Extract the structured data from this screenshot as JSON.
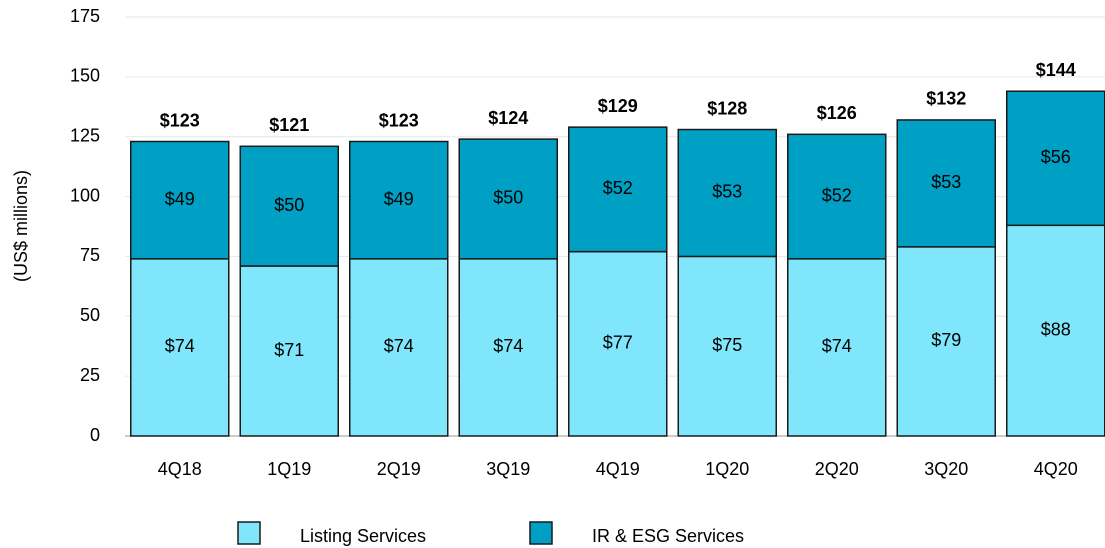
{
  "chart_data": {
    "type": "stacked_bar",
    "y_label": "(US$ millions)",
    "categories": [
      "4Q18",
      "1Q19",
      "2Q19",
      "3Q19",
      "4Q19",
      "1Q20",
      "2Q20",
      "3Q20",
      "4Q20"
    ],
    "series": [
      {
        "name": "Listing Services",
        "color": "#7fe6fb",
        "values": [
          74,
          71,
          74,
          74,
          77,
          75,
          74,
          79,
          88
        ],
        "value_labels": [
          "$74",
          "$71",
          "$74",
          "$74",
          "$77",
          "$75",
          "$74",
          "$79",
          "$88"
        ]
      },
      {
        "name": "IR & ESG Services",
        "color": "#009fc4",
        "values": [
          49,
          50,
          49,
          50,
          52,
          53,
          52,
          53,
          56
        ],
        "value_labels": [
          "$49",
          "$50",
          "$49",
          "$50",
          "$52",
          "$53",
          "$52",
          "$53",
          "$56"
        ]
      }
    ],
    "totals": [
      123,
      121,
      123,
      124,
      129,
      128,
      126,
      132,
      144
    ],
    "total_labels": [
      "$123",
      "$121",
      "$123",
      "$124",
      "$129",
      "$128",
      "$126",
      "$132",
      "$144"
    ],
    "ylim": [
      0,
      175
    ],
    "yticks": [
      0,
      25,
      50,
      75,
      100,
      125,
      150,
      175
    ],
    "grid": true
  }
}
